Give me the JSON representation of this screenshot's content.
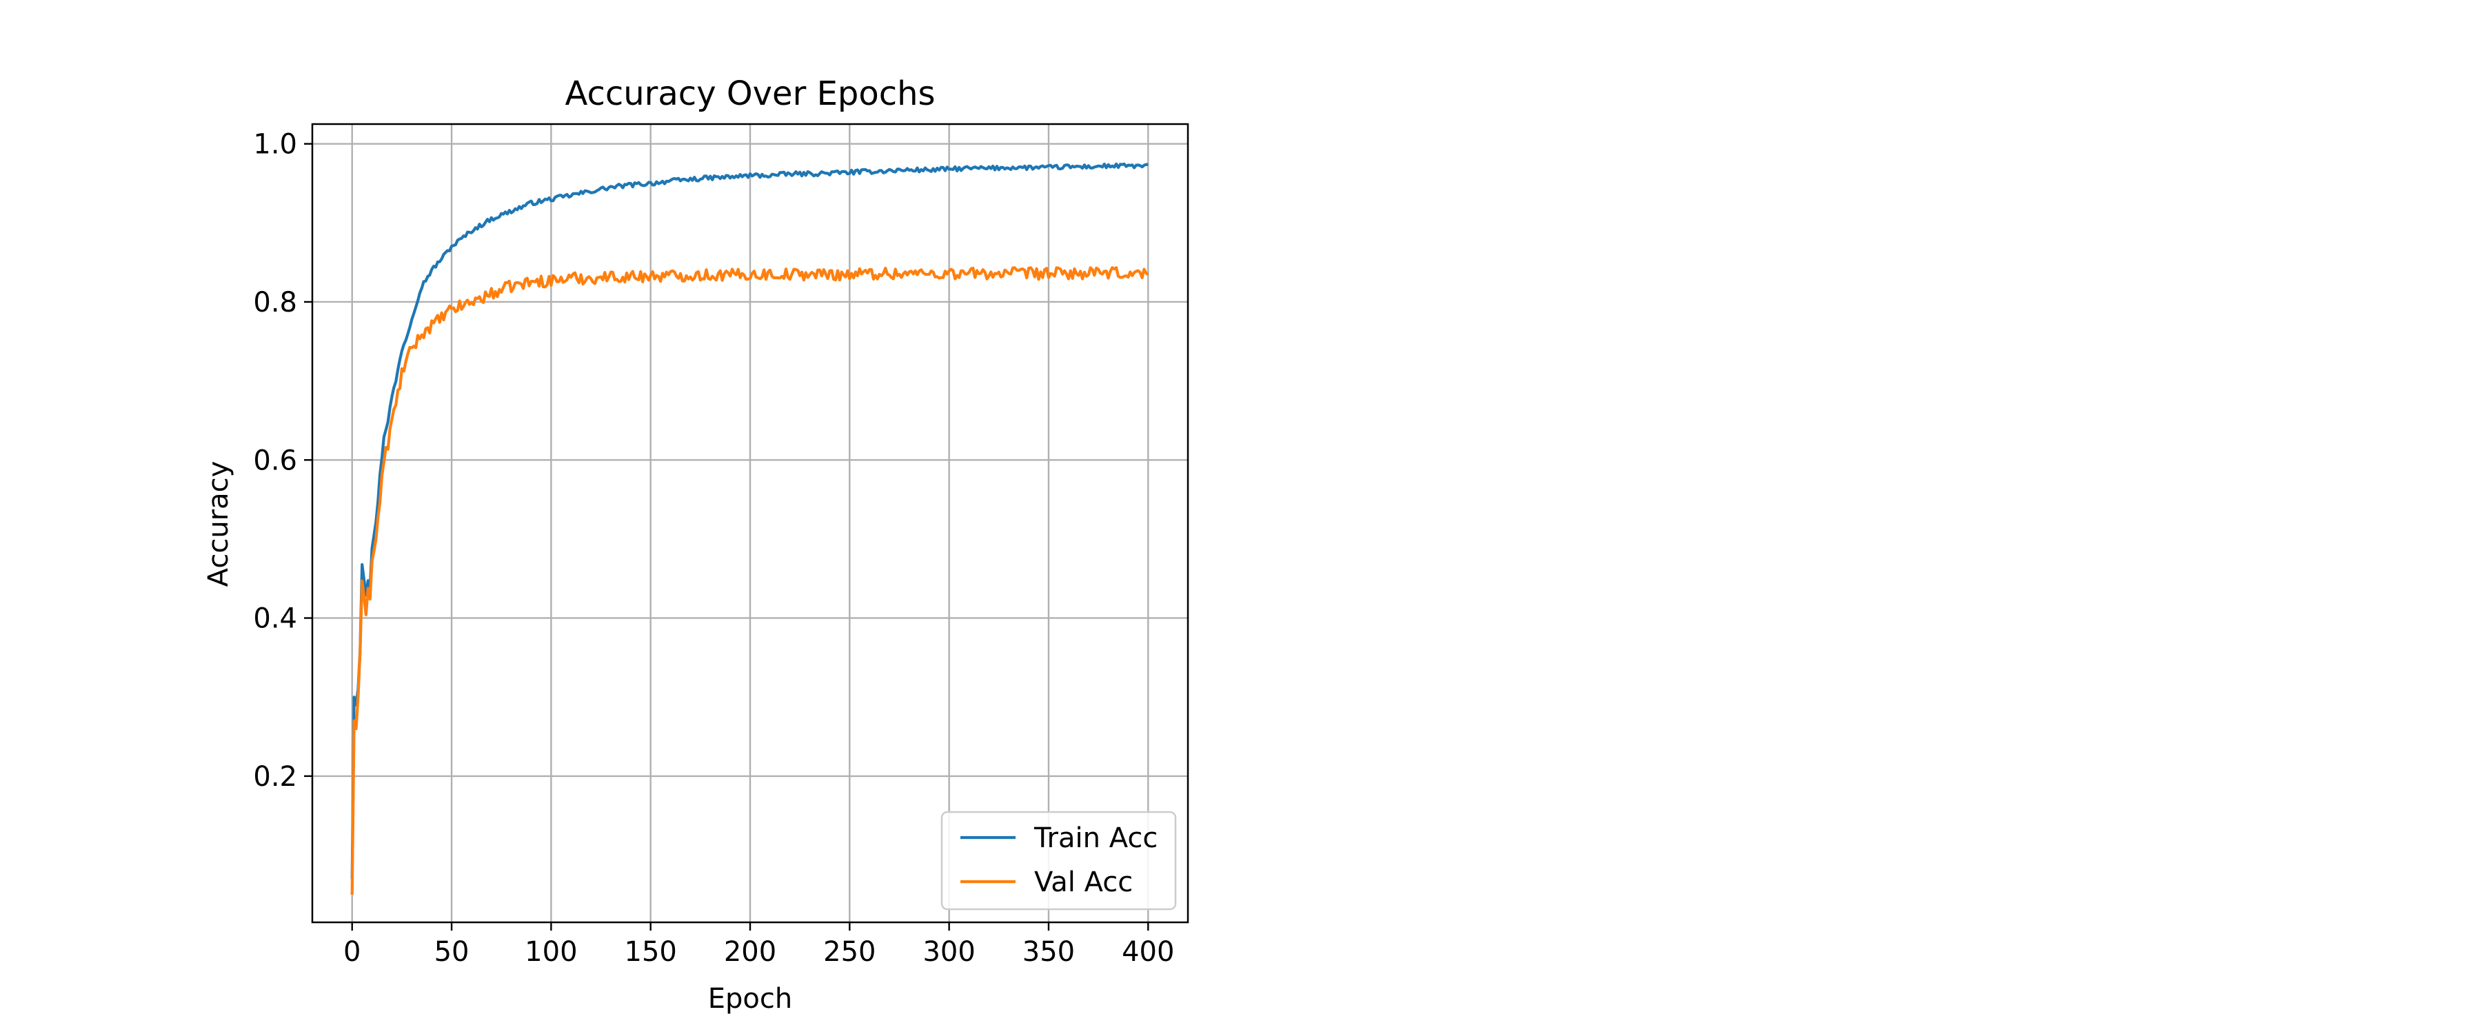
{
  "chart_data": {
    "type": "line",
    "title": "Accuracy Over Epochs",
    "xlabel": "Epoch",
    "ylabel": "Accuracy",
    "xlim": [
      -20,
      420
    ],
    "ylim": [
      0.015,
      1.025
    ],
    "xticks": [
      0,
      50,
      100,
      150,
      200,
      250,
      300,
      350,
      400
    ],
    "yticks": [
      0.2,
      0.4,
      0.6,
      0.8,
      1.0
    ],
    "xtick_labels": [
      "0",
      "50",
      "100",
      "150",
      "200",
      "250",
      "300",
      "350",
      "400"
    ],
    "ytick_labels": [
      "0.2",
      "0.4",
      "0.6",
      "0.8",
      "1.0"
    ],
    "grid": true,
    "legend_position": "lower-right",
    "series": [
      {
        "name": "Train Acc",
        "color": "#1f77b4",
        "x": [
          0,
          1,
          2,
          3,
          4,
          5,
          6,
          7,
          8,
          9,
          10,
          12,
          14,
          16,
          18,
          20,
          22,
          25,
          28,
          30,
          35,
          40,
          45,
          50,
          55,
          60,
          70,
          80,
          90,
          100,
          110,
          120,
          130,
          140,
          150,
          160,
          170,
          180,
          190,
          200,
          210,
          220,
          230,
          240,
          250,
          260,
          270,
          280,
          290,
          300,
          310,
          320,
          330,
          340,
          350,
          360,
          370,
          380,
          390,
          400
        ],
        "values": [
          0.07,
          0.3,
          0.29,
          0.31,
          0.36,
          0.47,
          0.45,
          0.43,
          0.45,
          0.44,
          0.49,
          0.52,
          0.58,
          0.63,
          0.65,
          0.68,
          0.7,
          0.74,
          0.76,
          0.78,
          0.82,
          0.84,
          0.855,
          0.87,
          0.88,
          0.89,
          0.905,
          0.915,
          0.925,
          0.93,
          0.935,
          0.94,
          0.945,
          0.948,
          0.95,
          0.953,
          0.955,
          0.957,
          0.958,
          0.96,
          0.96,
          0.962,
          0.962,
          0.963,
          0.964,
          0.965,
          0.966,
          0.967,
          0.967,
          0.968,
          0.969,
          0.969,
          0.97,
          0.97,
          0.97,
          0.971,
          0.971,
          0.972,
          0.972,
          0.972
        ]
      },
      {
        "name": "Val Acc",
        "color": "#ff7f0e",
        "x": [
          0,
          1,
          2,
          3,
          4,
          5,
          6,
          7,
          8,
          9,
          10,
          12,
          14,
          16,
          18,
          20,
          22,
          25,
          28,
          30,
          35,
          40,
          45,
          50,
          55,
          60,
          70,
          80,
          90,
          100,
          110,
          120,
          130,
          140,
          150,
          160,
          170,
          180,
          190,
          200,
          210,
          220,
          230,
          240,
          250,
          260,
          270,
          280,
          290,
          300,
          310,
          320,
          330,
          340,
          350,
          360,
          370,
          380,
          390,
          400
        ],
        "values": [
          0.05,
          0.27,
          0.26,
          0.3,
          0.36,
          0.44,
          0.42,
          0.41,
          0.44,
          0.43,
          0.47,
          0.5,
          0.55,
          0.6,
          0.62,
          0.65,
          0.67,
          0.71,
          0.73,
          0.74,
          0.76,
          0.77,
          0.78,
          0.79,
          0.795,
          0.8,
          0.81,
          0.82,
          0.825,
          0.827,
          0.83,
          0.83,
          0.832,
          0.832,
          0.833,
          0.833,
          0.834,
          0.834,
          0.834,
          0.835,
          0.835,
          0.835,
          0.835,
          0.835,
          0.835,
          0.836,
          0.836,
          0.836,
          0.836,
          0.836,
          0.836,
          0.836,
          0.836,
          0.836,
          0.836,
          0.836,
          0.836,
          0.836,
          0.836,
          0.836
        ]
      }
    ]
  }
}
